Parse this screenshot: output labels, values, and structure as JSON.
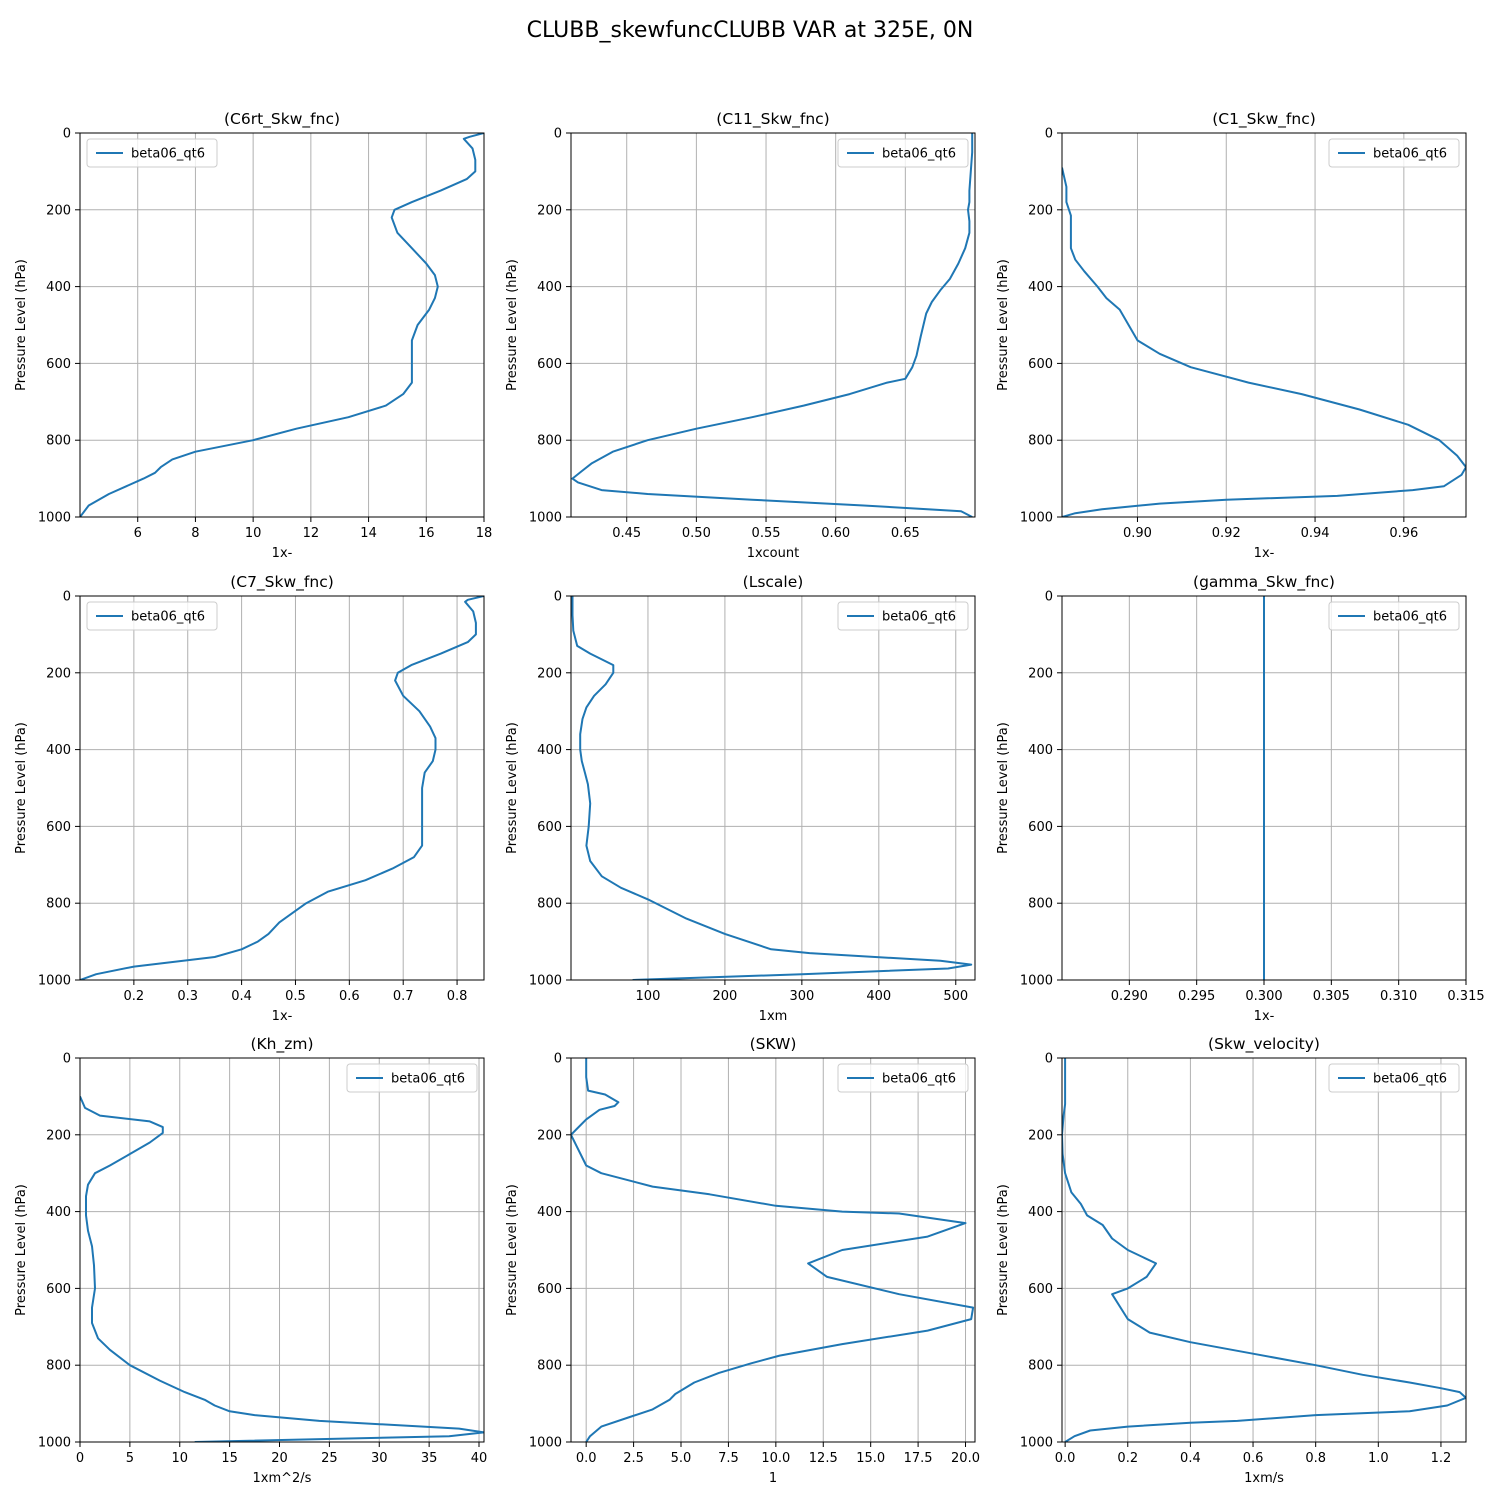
{
  "figure": {
    "title": "CLUBB_skewfuncCLUBB VAR at 325E, 0N",
    "line_color": "#1f77b4"
  },
  "chart_data": [
    {
      "type": "line",
      "title": "(C6rt_Skw_fnc)",
      "xlabel": "1x-",
      "ylabel": "Pressure Level (hPa)",
      "xlim": [
        4,
        18
      ],
      "ylim": [
        1000,
        0
      ],
      "xticks": [
        6,
        8,
        10,
        12,
        14,
        16,
        18
      ],
      "xtick_labels": [
        "6",
        "8",
        "10",
        "12",
        "14",
        "16",
        "18"
      ],
      "yticks": [
        0,
        200,
        400,
        600,
        800,
        1000
      ],
      "ytick_labels": [
        "0",
        "200",
        "400",
        "600",
        "800",
        "1000"
      ],
      "grid": true,
      "legend": {
        "position": "upper left",
        "entries": [
          "beta06_qt6"
        ]
      },
      "series": [
        {
          "name": "beta06_qt6",
          "x": [
            18.0,
            17.5,
            17.3,
            17.6,
            17.7,
            17.7,
            17.4,
            16.5,
            15.5,
            14.9,
            14.8,
            15.0,
            15.5,
            16.0,
            16.3,
            16.4,
            16.3,
            16.1,
            15.7,
            15.5,
            15.5,
            15.5,
            15.2,
            14.6,
            13.3,
            11.5,
            10.0,
            8.0,
            7.2,
            6.8,
            6.6,
            6.2,
            5.0,
            4.3,
            4.0
          ],
          "y": [
            0,
            10,
            15,
            40,
            70,
            100,
            120,
            150,
            180,
            200,
            220,
            260,
            300,
            340,
            370,
            400,
            430,
            460,
            500,
            540,
            580,
            650,
            680,
            710,
            740,
            770,
            800,
            830,
            850,
            870,
            885,
            900,
            940,
            970,
            1000
          ]
        }
      ]
    },
    {
      "type": "line",
      "title": "(C11_Skw_fnc)",
      "xlabel": "1xcount",
      "ylabel": "Pressure Level (hPa)",
      "xlim": [
        0.41,
        0.7
      ],
      "ylim": [
        1000,
        0
      ],
      "xticks": [
        0.45,
        0.5,
        0.55,
        0.6,
        0.65
      ],
      "xtick_labels": [
        "0.45",
        "0.50",
        "0.55",
        "0.60",
        "0.65"
      ],
      "yticks": [
        0,
        200,
        400,
        600,
        800,
        1000
      ],
      "ytick_labels": [
        "0",
        "200",
        "400",
        "600",
        "800",
        "1000"
      ],
      "grid": true,
      "legend": {
        "position": "upper right",
        "entries": [
          "beta06_qt6"
        ]
      },
      "series": [
        {
          "name": "beta06_qt6",
          "x": [
            0.698,
            0.698,
            0.697,
            0.696,
            0.696,
            0.695,
            0.696,
            0.696,
            0.693,
            0.688,
            0.682,
            0.675,
            0.669,
            0.665,
            0.661,
            0.658,
            0.655,
            0.65,
            0.637,
            0.61,
            0.577,
            0.54,
            0.5,
            0.465,
            0.44,
            0.425,
            0.418,
            0.411,
            0.415,
            0.432,
            0.465,
            0.54,
            0.62,
            0.69,
            0.698
          ],
          "y": [
            0,
            50,
            100,
            150,
            180,
            200,
            230,
            260,
            300,
            340,
            380,
            410,
            440,
            470,
            530,
            580,
            610,
            640,
            650,
            680,
            710,
            740,
            770,
            800,
            830,
            860,
            880,
            900,
            910,
            930,
            940,
            955,
            970,
            985,
            1000
          ]
        }
      ]
    },
    {
      "type": "line",
      "title": "(C1_Skw_fnc)",
      "xlabel": "1x-",
      "ylabel": "Pressure Level (hPa)",
      "xlim": [
        0.883,
        0.974
      ],
      "ylim": [
        1000,
        0
      ],
      "xticks": [
        0.9,
        0.92,
        0.94,
        0.96
      ],
      "xtick_labels": [
        "0.90",
        "0.92",
        "0.94",
        "0.96"
      ],
      "yticks": [
        0,
        200,
        400,
        600,
        800,
        1000
      ],
      "ytick_labels": [
        "0",
        "200",
        "400",
        "600",
        "800",
        "1000"
      ],
      "grid": true,
      "legend": {
        "position": "upper right",
        "entries": [
          "beta06_qt6"
        ]
      },
      "series": [
        {
          "name": "beta06_qt6",
          "x": [
            0.883,
            0.884,
            0.884,
            0.885,
            0.885,
            0.885,
            0.886,
            0.888,
            0.891,
            0.893,
            0.896,
            0.898,
            0.9,
            0.905,
            0.912,
            0.925,
            0.937,
            0.95,
            0.961,
            0.968,
            0.972,
            0.974,
            0.973,
            0.969,
            0.962,
            0.945,
            0.92,
            0.905,
            0.892,
            0.886,
            0.883
          ],
          "y": [
            90,
            140,
            180,
            215,
            260,
            300,
            330,
            360,
            400,
            430,
            460,
            500,
            540,
            575,
            610,
            650,
            680,
            720,
            760,
            800,
            840,
            870,
            890,
            920,
            930,
            945,
            955,
            965,
            980,
            990,
            1000
          ]
        }
      ]
    },
    {
      "type": "line",
      "title": "(C7_Skw_fnc)",
      "xlabel": "1x-",
      "ylabel": "Pressure Level (hPa)",
      "xlim": [
        0.1,
        0.85
      ],
      "ylim": [
        1000,
        0
      ],
      "xticks": [
        0.2,
        0.3,
        0.4,
        0.5,
        0.6,
        0.7,
        0.8
      ],
      "xtick_labels": [
        "0.2",
        "0.3",
        "0.4",
        "0.5",
        "0.6",
        "0.7",
        "0.8"
      ],
      "yticks": [
        0,
        200,
        400,
        600,
        800,
        1000
      ],
      "ytick_labels": [
        "0",
        "200",
        "400",
        "600",
        "800",
        "1000"
      ],
      "grid": true,
      "legend": {
        "position": "upper left",
        "entries": [
          "beta06_qt6"
        ]
      },
      "series": [
        {
          "name": "beta06_qt6",
          "x": [
            0.85,
            0.82,
            0.815,
            0.83,
            0.835,
            0.835,
            0.82,
            0.77,
            0.715,
            0.69,
            0.685,
            0.7,
            0.73,
            0.75,
            0.76,
            0.76,
            0.755,
            0.74,
            0.735,
            0.735,
            0.735,
            0.735,
            0.72,
            0.68,
            0.63,
            0.56,
            0.52,
            0.49,
            0.47,
            0.45,
            0.43,
            0.4,
            0.35,
            0.2,
            0.13,
            0.1
          ],
          "y": [
            0,
            10,
            15,
            40,
            70,
            100,
            120,
            150,
            180,
            200,
            220,
            260,
            300,
            340,
            370,
            400,
            430,
            460,
            500,
            540,
            600,
            650,
            680,
            710,
            740,
            770,
            800,
            830,
            850,
            880,
            900,
            920,
            940,
            965,
            985,
            1000
          ]
        }
      ]
    },
    {
      "type": "line",
      "title": "(Lscale)",
      "xlabel": "1xm",
      "ylabel": "Pressure Level (hPa)",
      "xlim": [
        0,
        525
      ],
      "ylim": [
        1000,
        0
      ],
      "xticks": [
        100,
        200,
        300,
        400,
        500
      ],
      "xtick_labels": [
        "100",
        "200",
        "300",
        "400",
        "500"
      ],
      "yticks": [
        0,
        200,
        400,
        600,
        800,
        1000
      ],
      "ytick_labels": [
        "0",
        "200",
        "400",
        "600",
        "800",
        "1000"
      ],
      "grid": true,
      "legend": {
        "position": "upper right",
        "entries": [
          "beta06_qt6"
        ]
      },
      "series": [
        {
          "name": "beta06_qt6",
          "x": [
            2,
            2,
            3,
            8,
            25,
            40,
            55,
            55,
            45,
            30,
            20,
            15,
            12,
            12,
            14,
            18,
            22,
            25,
            23,
            20,
            25,
            40,
            65,
            100,
            150,
            200,
            260,
            310,
            480,
            520,
            490,
            300,
            80
          ],
          "y": [
            0,
            50,
            90,
            130,
            150,
            165,
            180,
            200,
            230,
            260,
            290,
            320,
            360,
            400,
            430,
            460,
            490,
            540,
            600,
            650,
            690,
            730,
            760,
            790,
            840,
            880,
            920,
            930,
            950,
            960,
            970,
            985,
            1000
          ]
        }
      ]
    },
    {
      "type": "line",
      "title": "(gamma_Skw_fnc)",
      "xlabel": "1x-",
      "ylabel": "Pressure Level (hPa)",
      "xlim": [
        0.285,
        0.315
      ],
      "ylim": [
        1000,
        0
      ],
      "xticks": [
        0.29,
        0.295,
        0.3,
        0.305,
        0.31,
        0.315
      ],
      "xtick_labels": [
        "0.290",
        "0.295",
        "0.300",
        "0.305",
        "0.310",
        "0.315"
      ],
      "yticks": [
        0,
        200,
        400,
        600,
        800,
        1000
      ],
      "ytick_labels": [
        "0",
        "200",
        "400",
        "600",
        "800",
        "1000"
      ],
      "grid": true,
      "legend": {
        "position": "upper right",
        "entries": [
          "beta06_qt6"
        ]
      },
      "series": [
        {
          "name": "beta06_qt6",
          "x": [
            0.3,
            0.3
          ],
          "y": [
            0,
            1000
          ]
        }
      ]
    },
    {
      "type": "line",
      "title": "(Kh_zm)",
      "xlabel": "1xm^2/s",
      "ylabel": "Pressure Level (hPa)",
      "xlim": [
        0,
        40.5
      ],
      "ylim": [
        1000,
        0
      ],
      "xticks": [
        0,
        5,
        10,
        15,
        20,
        25,
        30,
        35,
        40
      ],
      "xtick_labels": [
        "0",
        "5",
        "10",
        "15",
        "20",
        "25",
        "30",
        "35",
        "40"
      ],
      "yticks": [
        0,
        200,
        400,
        600,
        800,
        1000
      ],
      "ytick_labels": [
        "0",
        "200",
        "400",
        "600",
        "800",
        "1000"
      ],
      "grid": true,
      "legend": {
        "position": "upper right",
        "entries": [
          "beta06_qt6"
        ]
      },
      "series": [
        {
          "name": "beta06_qt6",
          "x": [
            0,
            0.5,
            2,
            7,
            8.3,
            8.3,
            7,
            5,
            3,
            1.5,
            0.8,
            0.6,
            0.6,
            0.8,
            1.2,
            1.4,
            1.5,
            1.2,
            1.2,
            1.8,
            3,
            5,
            8,
            10.5,
            12.5,
            13.5,
            15,
            17.5,
            24,
            38,
            40.5,
            37,
            11.5
          ],
          "y": [
            100,
            130,
            150,
            165,
            180,
            195,
            220,
            250,
            280,
            300,
            330,
            360,
            410,
            450,
            490,
            540,
            600,
            650,
            690,
            730,
            760,
            800,
            840,
            870,
            890,
            905,
            920,
            930,
            945,
            965,
            975,
            985,
            1000
          ]
        }
      ]
    },
    {
      "type": "line",
      "title": "(SKW)",
      "xlabel": "1",
      "ylabel": "Pressure Level (hPa)",
      "xlim": [
        -0.8,
        20.5
      ],
      "ylim": [
        1000,
        0
      ],
      "xticks": [
        0.0,
        2.5,
        5.0,
        7.5,
        10.0,
        12.5,
        15.0,
        17.5,
        20.0
      ],
      "xtick_labels": [
        "0.0",
        "2.5",
        "5.0",
        "7.5",
        "10.0",
        "12.5",
        "15.0",
        "17.5",
        "20.0"
      ],
      "yticks": [
        0,
        200,
        400,
        600,
        800,
        1000
      ],
      "ytick_labels": [
        "0",
        "200",
        "400",
        "600",
        "800",
        "1000"
      ],
      "grid": true,
      "legend": {
        "position": "upper right",
        "entries": [
          "beta06_qt6"
        ]
      },
      "series": [
        {
          "name": "beta06_qt6",
          "x": [
            0.0,
            0.0,
            0.1,
            1.0,
            1.7,
            1.5,
            0.7,
            0.0,
            -0.5,
            -0.8,
            -0.6,
            0.0,
            0.8,
            3.5,
            6.5,
            10.0,
            13.5,
            16.5,
            20.0,
            18.0,
            13.5,
            11.7,
            12.7,
            16.5,
            20.4,
            20.3,
            18.0,
            13.5,
            10.2,
            8.7,
            7.0,
            5.7,
            4.7,
            4.4,
            3.5,
            2.3,
            0.8,
            0.2,
            0.0
          ],
          "y": [
            0,
            50,
            85,
            95,
            115,
            125,
            135,
            160,
            185,
            200,
            220,
            280,
            300,
            335,
            355,
            385,
            400,
            405,
            430,
            465,
            500,
            535,
            570,
            615,
            650,
            680,
            710,
            745,
            775,
            795,
            820,
            845,
            875,
            890,
            915,
            935,
            960,
            985,
            1000
          ]
        }
      ]
    },
    {
      "type": "line",
      "title": "(Skw_velocity)",
      "xlabel": "1xm/s",
      "ylabel": "Pressure Level (hPa)",
      "xlim": [
        -0.01,
        1.28
      ],
      "ylim": [
        1000,
        0
      ],
      "xticks": [
        0.0,
        0.2,
        0.4,
        0.6,
        0.8,
        1.0,
        1.2
      ],
      "xtick_labels": [
        "0.0",
        "0.2",
        "0.4",
        "0.6",
        "0.8",
        "1.0",
        "1.2"
      ],
      "yticks": [
        0,
        200,
        400,
        600,
        800,
        1000
      ],
      "ytick_labels": [
        "0",
        "200",
        "400",
        "600",
        "800",
        "1000"
      ],
      "grid": true,
      "legend": {
        "position": "upper right",
        "entries": [
          "beta06_qt6"
        ]
      },
      "series": [
        {
          "name": "beta06_qt6",
          "x": [
            0.0,
            0.0,
            0.0,
            -0.005,
            -0.01,
            -0.008,
            0.0,
            0.02,
            0.05,
            0.07,
            0.12,
            0.15,
            0.2,
            0.29,
            0.26,
            0.2,
            0.15,
            0.2,
            0.27,
            0.4,
            0.6,
            0.8,
            0.95,
            1.1,
            1.2,
            1.26,
            1.28,
            1.22,
            1.1,
            0.8,
            0.55,
            0.4,
            0.2,
            0.08,
            0.03,
            0.0
          ],
          "y": [
            0,
            60,
            120,
            150,
            200,
            250,
            300,
            350,
            380,
            410,
            435,
            470,
            500,
            535,
            570,
            600,
            615,
            680,
            715,
            740,
            770,
            800,
            825,
            845,
            860,
            870,
            885,
            905,
            920,
            930,
            945,
            950,
            960,
            970,
            985,
            1000
          ]
        }
      ]
    }
  ]
}
